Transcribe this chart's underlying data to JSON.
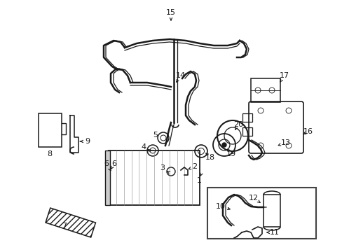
{
  "bg_color": "#ffffff",
  "lc": "#1a1a1a",
  "figsize": [
    4.89,
    3.6
  ],
  "dpi": 100,
  "xlim": [
    0,
    489
  ],
  "ylim": [
    0,
    360
  ]
}
